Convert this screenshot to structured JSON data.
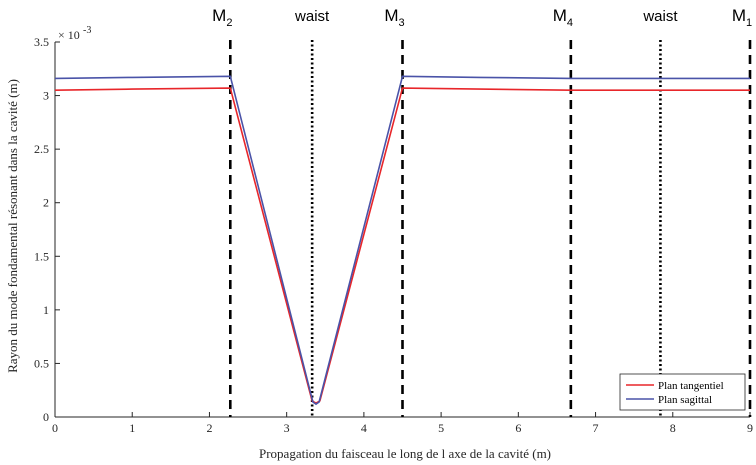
{
  "chart_data": {
    "type": "line",
    "title": "",
    "xlabel": "Propagation du faisceau le long de l axe de la cavité (m)",
    "ylabel": "Rayon du mode fondamental résonant dans la cavité (m)",
    "y_exponent_label": "× 10",
    "y_exponent_power": "-3",
    "xlim": [
      0,
      9
    ],
    "ylim": [
      0,
      3.5
    ],
    "y_scale_factor": 0.001,
    "xticks": [
      0,
      1,
      2,
      3,
      4,
      5,
      6,
      7,
      8,
      9
    ],
    "xtick_labels": [
      "0",
      "1",
      "2",
      "3",
      "4",
      "5",
      "6",
      "7",
      "8",
      "9"
    ],
    "yticks": [
      0,
      0.5,
      1,
      1.5,
      2,
      2.5,
      3,
      3.5
    ],
    "ytick_labels": [
      "0",
      "0.5",
      "1",
      "1.5",
      "2",
      "2.5",
      "3",
      "3.5"
    ],
    "grid": false,
    "legend_position": "bottom-right",
    "series": [
      {
        "name": "Plan tangentiel",
        "color": "#e8262a",
        "x": [
          0,
          1,
          2.27,
          3.33,
          3.38,
          3.43,
          4.5,
          5.5,
          6.68,
          7.84,
          9.0
        ],
        "y": [
          3.05,
          3.06,
          3.07,
          0.15,
          0.13,
          0.15,
          3.07,
          3.06,
          3.05,
          3.05,
          3.05
        ]
      },
      {
        "name": "Plan sagittal",
        "color": "#4a53a8",
        "x": [
          0,
          1,
          2.27,
          3.34,
          3.38,
          3.42,
          4.5,
          5.5,
          6.68,
          7.84,
          9.0
        ],
        "y": [
          3.16,
          3.17,
          3.18,
          0.14,
          0.12,
          0.14,
          3.18,
          3.17,
          3.16,
          3.16,
          3.16
        ]
      }
    ],
    "vertical_markers": [
      {
        "x": 2.27,
        "style": "dashed",
        "label": "M",
        "sub": "2"
      },
      {
        "x": 3.33,
        "style": "dotted",
        "label": "waist",
        "sub": ""
      },
      {
        "x": 4.5,
        "style": "dashed",
        "label": "M",
        "sub": "3"
      },
      {
        "x": 6.68,
        "style": "dashed",
        "label": "M",
        "sub": "4"
      },
      {
        "x": 7.84,
        "style": "dotted",
        "label": "waist",
        "sub": ""
      },
      {
        "x": 9.0,
        "style": "dashed",
        "label": "M",
        "sub": "1"
      }
    ]
  }
}
